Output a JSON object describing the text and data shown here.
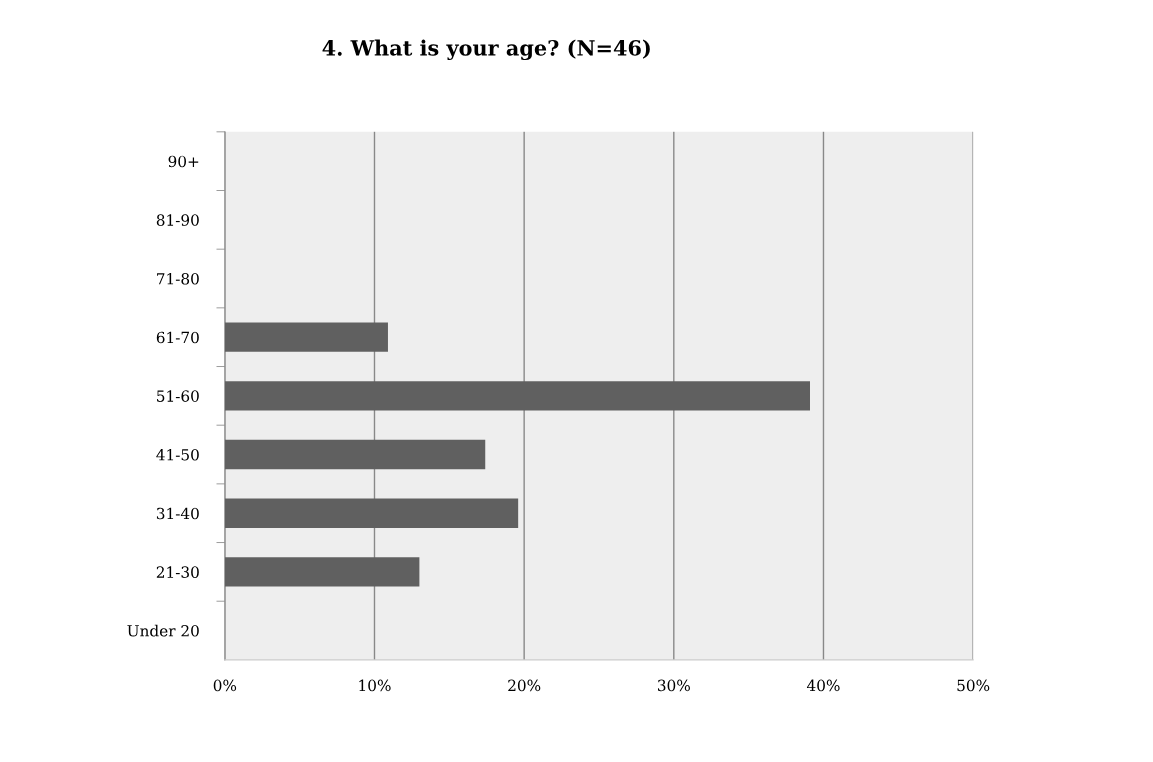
{
  "chart_data": {
    "type": "bar",
    "orientation": "horizontal",
    "title": "4. What is your age? (N=46)",
    "categories": [
      "90+",
      "81-90",
      "71-80",
      "61-70",
      "51-60",
      "41-50",
      "31-40",
      "21-30",
      "Under 20"
    ],
    "values": [
      0,
      0,
      0,
      10.9,
      39.1,
      17.4,
      19.6,
      13.0,
      0
    ],
    "color": "#606060",
    "xlim": [
      0,
      50
    ],
    "xticks": [
      {
        "value": 0,
        "label": "0%"
      },
      {
        "value": 10,
        "label": "10%"
      },
      {
        "value": 20,
        "label": "20%"
      },
      {
        "value": 30,
        "label": "30%"
      },
      {
        "value": 40,
        "label": "40%"
      },
      {
        "value": 50,
        "label": "50%"
      }
    ],
    "grid": "x"
  }
}
